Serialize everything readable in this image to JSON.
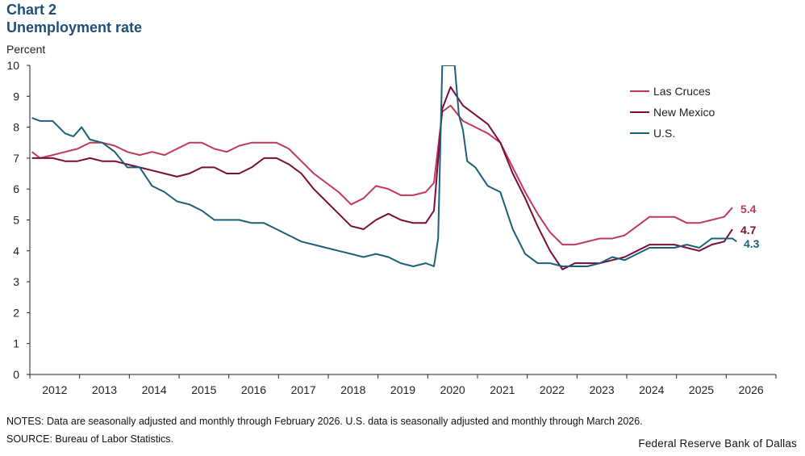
{
  "header": {
    "chart_number": "Chart 2",
    "title": "Unemployment rate",
    "unit_label": "Percent"
  },
  "footer": {
    "notes": "NOTES: Data are seasonally adjusted and monthly through February 2026. U.S. data is seasonally adjusted and monthly through March 2026.",
    "source": "SOURCE: Bureau of Labor Statistics.",
    "credit": "Federal Reserve Bank of Dallas"
  },
  "colors": {
    "las_cruces": "#c0395a",
    "new_mexico": "#7a0c3a",
    "us": "#1b6078",
    "axis": "#222222"
  },
  "chart_data": {
    "type": "line",
    "title": "Unemployment rate",
    "ylabel": "Percent",
    "xlabel": "",
    "ylim": [
      0,
      10
    ],
    "y_ticks": [
      "0",
      "1",
      "2",
      "3",
      "4",
      "5",
      "6",
      "7",
      "8",
      "9",
      "10"
    ],
    "x_ticks": [
      "2012",
      "2013",
      "2014",
      "2015",
      "2016",
      "2017",
      "2018",
      "2019",
      "2020",
      "2021",
      "2022",
      "2023",
      "2024",
      "2025",
      "2026"
    ],
    "xlim": [
      "2012-01",
      "2026-12"
    ],
    "grid": false,
    "legend_position": "top-right",
    "series": [
      {
        "name": "Las Cruces",
        "color_key": "las_cruces",
        "end_label": "5.4",
        "points": [
          [
            "2012-01",
            7.2
          ],
          [
            "2012-03",
            7.0
          ],
          [
            "2012-06",
            7.1
          ],
          [
            "2012-09",
            7.2
          ],
          [
            "2012-12",
            7.3
          ],
          [
            "2013-03",
            7.5
          ],
          [
            "2013-06",
            7.5
          ],
          [
            "2013-09",
            7.4
          ],
          [
            "2013-12",
            7.2
          ],
          [
            "2014-03",
            7.1
          ],
          [
            "2014-06",
            7.2
          ],
          [
            "2014-09",
            7.1
          ],
          [
            "2014-12",
            7.3
          ],
          [
            "2015-03",
            7.5
          ],
          [
            "2015-06",
            7.5
          ],
          [
            "2015-09",
            7.3
          ],
          [
            "2015-12",
            7.2
          ],
          [
            "2016-03",
            7.4
          ],
          [
            "2016-06",
            7.5
          ],
          [
            "2016-09",
            7.5
          ],
          [
            "2016-12",
            7.5
          ],
          [
            "2017-03",
            7.3
          ],
          [
            "2017-06",
            6.9
          ],
          [
            "2017-09",
            6.5
          ],
          [
            "2017-12",
            6.2
          ],
          [
            "2018-03",
            5.9
          ],
          [
            "2018-06",
            5.5
          ],
          [
            "2018-09",
            5.7
          ],
          [
            "2018-12",
            6.1
          ],
          [
            "2019-03",
            6.0
          ],
          [
            "2019-06",
            5.8
          ],
          [
            "2019-09",
            5.8
          ],
          [
            "2019-12",
            5.9
          ],
          [
            "2020-02",
            6.2
          ],
          [
            "2020-04",
            8.5
          ],
          [
            "2020-06",
            8.7
          ],
          [
            "2020-09",
            8.2
          ],
          [
            "2020-12",
            8.0
          ],
          [
            "2021-03",
            7.8
          ],
          [
            "2021-06",
            7.5
          ],
          [
            "2021-09",
            6.7
          ],
          [
            "2021-12",
            5.9
          ],
          [
            "2022-03",
            5.2
          ],
          [
            "2022-06",
            4.6
          ],
          [
            "2022-09",
            4.2
          ],
          [
            "2022-12",
            4.2
          ],
          [
            "2023-03",
            4.3
          ],
          [
            "2023-06",
            4.4
          ],
          [
            "2023-09",
            4.4
          ],
          [
            "2023-12",
            4.5
          ],
          [
            "2024-03",
            4.8
          ],
          [
            "2024-06",
            5.1
          ],
          [
            "2024-09",
            5.1
          ],
          [
            "2024-12",
            5.1
          ],
          [
            "2025-03",
            4.9
          ],
          [
            "2025-06",
            4.9
          ],
          [
            "2025-09",
            5.0
          ],
          [
            "2025-12",
            5.1
          ],
          [
            "2026-02",
            5.4
          ]
        ]
      },
      {
        "name": "New Mexico",
        "color_key": "new_mexico",
        "end_label": "4.7",
        "points": [
          [
            "2012-01",
            7.0
          ],
          [
            "2012-06",
            7.0
          ],
          [
            "2012-09",
            6.9
          ],
          [
            "2012-12",
            6.9
          ],
          [
            "2013-03",
            7.0
          ],
          [
            "2013-06",
            6.9
          ],
          [
            "2013-09",
            6.9
          ],
          [
            "2013-12",
            6.8
          ],
          [
            "2014-03",
            6.7
          ],
          [
            "2014-06",
            6.6
          ],
          [
            "2014-09",
            6.5
          ],
          [
            "2014-12",
            6.4
          ],
          [
            "2015-03",
            6.5
          ],
          [
            "2015-06",
            6.7
          ],
          [
            "2015-09",
            6.7
          ],
          [
            "2015-12",
            6.5
          ],
          [
            "2016-03",
            6.5
          ],
          [
            "2016-06",
            6.7
          ],
          [
            "2016-09",
            7.0
          ],
          [
            "2016-12",
            7.0
          ],
          [
            "2017-03",
            6.8
          ],
          [
            "2017-06",
            6.5
          ],
          [
            "2017-09",
            6.0
          ],
          [
            "2017-12",
            5.6
          ],
          [
            "2018-03",
            5.2
          ],
          [
            "2018-06",
            4.8
          ],
          [
            "2018-09",
            4.7
          ],
          [
            "2018-12",
            5.0
          ],
          [
            "2019-03",
            5.2
          ],
          [
            "2019-06",
            5.0
          ],
          [
            "2019-09",
            4.9
          ],
          [
            "2019-12",
            4.9
          ],
          [
            "2020-02",
            5.3
          ],
          [
            "2020-04",
            8.6
          ],
          [
            "2020-06",
            9.3
          ],
          [
            "2020-09",
            8.7
          ],
          [
            "2020-12",
            8.4
          ],
          [
            "2021-03",
            8.1
          ],
          [
            "2021-06",
            7.5
          ],
          [
            "2021-09",
            6.5
          ],
          [
            "2021-12",
            5.7
          ],
          [
            "2022-03",
            4.8
          ],
          [
            "2022-06",
            4.0
          ],
          [
            "2022-09",
            3.4
          ],
          [
            "2022-12",
            3.6
          ],
          [
            "2023-03",
            3.6
          ],
          [
            "2023-06",
            3.6
          ],
          [
            "2023-09",
            3.7
          ],
          [
            "2023-12",
            3.8
          ],
          [
            "2024-03",
            4.0
          ],
          [
            "2024-06",
            4.2
          ],
          [
            "2024-09",
            4.2
          ],
          [
            "2024-12",
            4.2
          ],
          [
            "2025-03",
            4.1
          ],
          [
            "2025-06",
            4.0
          ],
          [
            "2025-09",
            4.2
          ],
          [
            "2025-12",
            4.3
          ],
          [
            "2026-02",
            4.7
          ]
        ]
      },
      {
        "name": "U.S.",
        "color_key": "us",
        "end_label": "4.3",
        "points": [
          [
            "2012-01",
            8.3
          ],
          [
            "2012-03",
            8.2
          ],
          [
            "2012-06",
            8.2
          ],
          [
            "2012-09",
            7.8
          ],
          [
            "2012-11",
            7.7
          ],
          [
            "2013-01",
            8.0
          ],
          [
            "2013-03",
            7.6
          ],
          [
            "2013-06",
            7.5
          ],
          [
            "2013-09",
            7.2
          ],
          [
            "2013-12",
            6.7
          ],
          [
            "2014-03",
            6.7
          ],
          [
            "2014-06",
            6.1
          ],
          [
            "2014-09",
            5.9
          ],
          [
            "2014-12",
            5.6
          ],
          [
            "2015-03",
            5.5
          ],
          [
            "2015-06",
            5.3
          ],
          [
            "2015-09",
            5.0
          ],
          [
            "2015-12",
            5.0
          ],
          [
            "2016-03",
            5.0
          ],
          [
            "2016-06",
            4.9
          ],
          [
            "2016-09",
            4.9
          ],
          [
            "2016-12",
            4.7
          ],
          [
            "2017-03",
            4.5
          ],
          [
            "2017-06",
            4.3
          ],
          [
            "2017-09",
            4.2
          ],
          [
            "2017-12",
            4.1
          ],
          [
            "2018-03",
            4.0
          ],
          [
            "2018-06",
            3.9
          ],
          [
            "2018-09",
            3.8
          ],
          [
            "2018-12",
            3.9
          ],
          [
            "2019-03",
            3.8
          ],
          [
            "2019-06",
            3.6
          ],
          [
            "2019-09",
            3.5
          ],
          [
            "2019-12",
            3.6
          ],
          [
            "2020-02",
            3.5
          ],
          [
            "2020-03",
            4.4
          ],
          [
            "2020-04",
            10.0
          ],
          [
            "2020-05",
            10.0
          ],
          [
            "2020-06",
            10.0
          ],
          [
            "2020-07",
            10.0
          ],
          [
            "2020-08",
            8.4
          ],
          [
            "2020-09",
            7.9
          ],
          [
            "2020-10",
            6.9
          ],
          [
            "2020-12",
            6.7
          ],
          [
            "2021-03",
            6.1
          ],
          [
            "2021-06",
            5.9
          ],
          [
            "2021-09",
            4.7
          ],
          [
            "2021-12",
            3.9
          ],
          [
            "2022-03",
            3.6
          ],
          [
            "2022-06",
            3.6
          ],
          [
            "2022-09",
            3.5
          ],
          [
            "2022-12",
            3.5
          ],
          [
            "2023-03",
            3.5
          ],
          [
            "2023-06",
            3.6
          ],
          [
            "2023-09",
            3.8
          ],
          [
            "2023-12",
            3.7
          ],
          [
            "2024-03",
            3.9
          ],
          [
            "2024-06",
            4.1
          ],
          [
            "2024-09",
            4.1
          ],
          [
            "2024-12",
            4.1
          ],
          [
            "2025-03",
            4.2
          ],
          [
            "2025-06",
            4.1
          ],
          [
            "2025-09",
            4.4
          ],
          [
            "2025-12",
            4.4
          ],
          [
            "2026-02",
            4.4
          ],
          [
            "2026-03",
            4.3
          ]
        ]
      }
    ]
  }
}
